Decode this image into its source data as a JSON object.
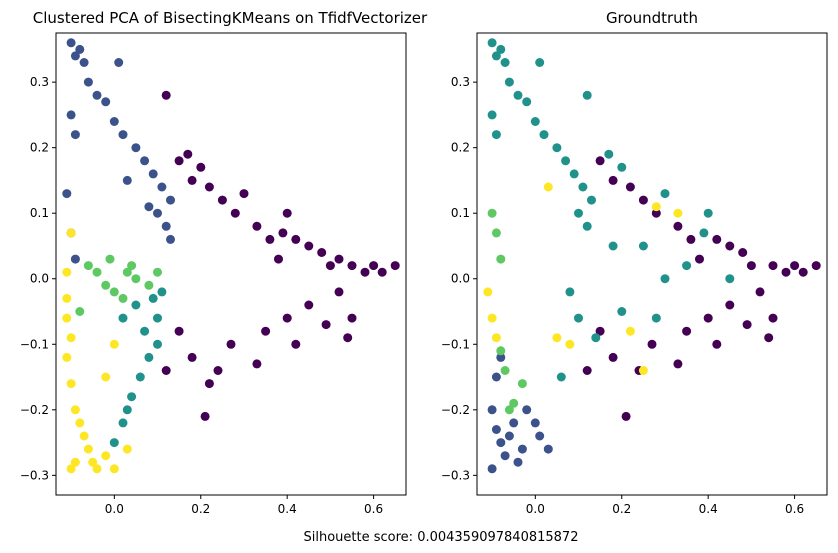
{
  "figure": {
    "footer_text": "Silhouette score: 0.004359097840815872"
  },
  "colors": {
    "purple": "#440154",
    "blue": "#3b528b",
    "teal": "#21918c",
    "green": "#5ec962",
    "yellow": "#fde725"
  },
  "chart_data": [
    {
      "type": "scatter",
      "title": "Clustered PCA of BisectingKMeans on TfidfVectorizer",
      "xlabel": "",
      "ylabel": "",
      "xlim": [
        -0.135,
        0.675
      ],
      "ylim": [
        -0.33,
        0.375
      ],
      "xticks": [
        0.0,
        0.2,
        0.4,
        0.6
      ],
      "xtick_labels": [
        "0.0",
        "0.2",
        "0.4",
        "0.6"
      ],
      "yticks": [
        -0.3,
        -0.2,
        -0.1,
        0.0,
        0.1,
        0.2,
        0.3
      ],
      "ytick_labels": [
        "−0.3",
        "−0.2",
        "−0.1",
        "0.0",
        "0.1",
        "0.2",
        "0.3"
      ],
      "grid": false,
      "legend": "none",
      "point_groups": [
        {
          "color": "purple",
          "points": [
            [
              0.12,
              0.28
            ],
            [
              0.15,
              0.18
            ],
            [
              0.17,
              0.19
            ],
            [
              0.18,
              0.15
            ],
            [
              0.2,
              0.17
            ],
            [
              0.22,
              0.14
            ],
            [
              0.25,
              0.12
            ],
            [
              0.3,
              0.13
            ],
            [
              0.28,
              0.1
            ],
            [
              0.33,
              0.08
            ],
            [
              0.36,
              0.06
            ],
            [
              0.39,
              0.07
            ],
            [
              0.4,
              0.1
            ],
            [
              0.42,
              0.06
            ],
            [
              0.45,
              0.05
            ],
            [
              0.48,
              0.04
            ],
            [
              0.5,
              0.02
            ],
            [
              0.52,
              0.03
            ],
            [
              0.55,
              0.02
            ],
            [
              0.58,
              0.01
            ],
            [
              0.6,
              0.02
            ],
            [
              0.62,
              0.01
            ],
            [
              0.65,
              0.02
            ],
            [
              0.52,
              -0.02
            ],
            [
              0.55,
              -0.06
            ],
            [
              0.54,
              -0.09
            ],
            [
              0.49,
              -0.07
            ],
            [
              0.45,
              -0.04
            ],
            [
              0.4,
              -0.06
            ],
            [
              0.35,
              -0.08
            ],
            [
              0.33,
              -0.13
            ],
            [
              0.24,
              -0.14
            ],
            [
              0.22,
              -0.16
            ],
            [
              0.21,
              -0.21
            ],
            [
              0.15,
              -0.08
            ],
            [
              0.12,
              -0.14
            ],
            [
              0.18,
              -0.12
            ],
            [
              0.27,
              -0.1
            ],
            [
              0.42,
              -0.1
            ],
            [
              0.38,
              0.03
            ]
          ]
        },
        {
          "color": "blue",
          "points": [
            [
              -0.1,
              0.36
            ],
            [
              -0.09,
              0.34
            ],
            [
              -0.08,
              0.35
            ],
            [
              -0.07,
              0.33
            ],
            [
              0.01,
              0.33
            ],
            [
              -0.06,
              0.3
            ],
            [
              -0.04,
              0.28
            ],
            [
              -0.02,
              0.27
            ],
            [
              -0.1,
              0.25
            ],
            [
              -0.09,
              0.22
            ],
            [
              0.0,
              0.24
            ],
            [
              0.02,
              0.22
            ],
            [
              0.05,
              0.2
            ],
            [
              0.07,
              0.18
            ],
            [
              0.09,
              0.16
            ],
            [
              0.11,
              0.14
            ],
            [
              0.13,
              0.12
            ],
            [
              0.1,
              0.1
            ],
            [
              0.12,
              0.08
            ],
            [
              0.13,
              0.06
            ],
            [
              -0.11,
              0.13
            ],
            [
              -0.1,
              0.07
            ],
            [
              -0.09,
              0.03
            ],
            [
              0.03,
              0.15
            ],
            [
              0.08,
              0.11
            ]
          ]
        },
        {
          "color": "teal",
          "points": [
            [
              0.11,
              -0.02
            ],
            [
              0.1,
              -0.06
            ],
            [
              0.1,
              -0.1
            ],
            [
              0.08,
              -0.12
            ],
            [
              0.06,
              -0.15
            ],
            [
              0.04,
              -0.18
            ],
            [
              0.03,
              -0.2
            ],
            [
              0.02,
              -0.22
            ],
            [
              0.0,
              -0.25
            ],
            [
              0.09,
              -0.03
            ],
            [
              0.05,
              -0.04
            ],
            [
              0.02,
              -0.06
            ],
            [
              0.07,
              -0.08
            ]
          ]
        },
        {
          "color": "green",
          "points": [
            [
              -0.06,
              0.02
            ],
            [
              -0.04,
              0.01
            ],
            [
              -0.02,
              -0.01
            ],
            [
              0.0,
              -0.02
            ],
            [
              0.03,
              0.01
            ],
            [
              0.05,
              0.0
            ],
            [
              0.08,
              -0.01
            ],
            [
              0.1,
              0.01
            ],
            [
              -0.01,
              0.03
            ],
            [
              0.02,
              -0.03
            ],
            [
              -0.08,
              -0.05
            ],
            [
              0.04,
              0.02
            ]
          ]
        },
        {
          "color": "yellow",
          "points": [
            [
              -0.11,
              -0.06
            ],
            [
              -0.1,
              -0.09
            ],
            [
              -0.11,
              -0.12
            ],
            [
              -0.1,
              -0.16
            ],
            [
              -0.09,
              -0.2
            ],
            [
              -0.08,
              -0.22
            ],
            [
              -0.07,
              -0.24
            ],
            [
              -0.06,
              -0.26
            ],
            [
              -0.05,
              -0.28
            ],
            [
              -0.04,
              -0.29
            ],
            [
              -0.1,
              -0.29
            ],
            [
              -0.09,
              -0.28
            ],
            [
              -0.02,
              -0.27
            ],
            [
              0.0,
              -0.29
            ],
            [
              0.03,
              -0.26
            ],
            [
              -0.1,
              0.07
            ],
            [
              -0.11,
              0.01
            ],
            [
              -0.11,
              -0.03
            ],
            [
              0.0,
              -0.1
            ],
            [
              -0.02,
              -0.15
            ]
          ]
        }
      ]
    },
    {
      "type": "scatter",
      "title": "Groundtruth",
      "xlabel": "",
      "ylabel": "",
      "xlim": [
        -0.135,
        0.675
      ],
      "ylim": [
        -0.33,
        0.375
      ],
      "xticks": [
        0.0,
        0.2,
        0.4,
        0.6
      ],
      "xtick_labels": [
        "0.0",
        "0.2",
        "0.4",
        "0.6"
      ],
      "yticks": [
        -0.3,
        -0.2,
        -0.1,
        0.0,
        0.1,
        0.2,
        0.3
      ],
      "ytick_labels": [
        "−0.3",
        "−0.2",
        "−0.1",
        "0.0",
        "0.1",
        "0.2",
        "0.3"
      ],
      "grid": false,
      "legend": "none",
      "point_groups": [
        {
          "color": "purple",
          "points": [
            [
              0.15,
              0.18
            ],
            [
              0.18,
              0.15
            ],
            [
              0.22,
              0.14
            ],
            [
              0.25,
              0.12
            ],
            [
              0.28,
              0.1
            ],
            [
              0.33,
              0.08
            ],
            [
              0.36,
              0.06
            ],
            [
              0.42,
              0.06
            ],
            [
              0.45,
              0.05
            ],
            [
              0.48,
              0.04
            ],
            [
              0.5,
              0.02
            ],
            [
              0.55,
              0.02
            ],
            [
              0.58,
              0.01
            ],
            [
              0.6,
              0.02
            ],
            [
              0.62,
              0.01
            ],
            [
              0.65,
              0.02
            ],
            [
              0.52,
              -0.02
            ],
            [
              0.55,
              -0.06
            ],
            [
              0.54,
              -0.09
            ],
            [
              0.49,
              -0.07
            ],
            [
              0.45,
              -0.04
            ],
            [
              0.4,
              -0.06
            ],
            [
              0.35,
              -0.08
            ],
            [
              0.33,
              -0.13
            ],
            [
              0.24,
              -0.14
            ],
            [
              0.21,
              -0.21
            ],
            [
              0.15,
              -0.08
            ],
            [
              0.12,
              -0.14
            ],
            [
              0.18,
              -0.12
            ],
            [
              0.27,
              -0.1
            ],
            [
              0.42,
              -0.1
            ],
            [
              0.38,
              0.03
            ]
          ]
        },
        {
          "color": "blue",
          "points": [
            [
              -0.1,
              -0.2
            ],
            [
              -0.09,
              -0.23
            ],
            [
              -0.08,
              -0.25
            ],
            [
              -0.07,
              -0.27
            ],
            [
              -0.06,
              -0.24
            ],
            [
              -0.05,
              -0.22
            ],
            [
              -0.04,
              -0.28
            ],
            [
              -0.03,
              -0.26
            ],
            [
              -0.02,
              -0.2
            ],
            [
              0.0,
              -0.22
            ],
            [
              0.01,
              -0.24
            ],
            [
              0.03,
              -0.26
            ],
            [
              -0.1,
              -0.29
            ],
            [
              -0.09,
              -0.15
            ],
            [
              -0.08,
              -0.12
            ]
          ]
        },
        {
          "color": "teal",
          "points": [
            [
              -0.1,
              0.36
            ],
            [
              -0.09,
              0.34
            ],
            [
              -0.08,
              0.35
            ],
            [
              -0.07,
              0.33
            ],
            [
              0.01,
              0.33
            ],
            [
              -0.06,
              0.3
            ],
            [
              -0.04,
              0.28
            ],
            [
              0.12,
              0.28
            ],
            [
              0.17,
              0.19
            ],
            [
              0.2,
              0.17
            ],
            [
              0.3,
              0.13
            ],
            [
              0.39,
              0.07
            ],
            [
              0.4,
              0.1
            ],
            [
              0.05,
              0.2
            ],
            [
              0.07,
              0.18
            ],
            [
              0.09,
              0.16
            ],
            [
              0.11,
              0.14
            ],
            [
              0.13,
              0.12
            ],
            [
              0.1,
              0.1
            ],
            [
              0.12,
              0.08
            ],
            [
              -0.02,
              0.27
            ],
            [
              -0.1,
              0.25
            ],
            [
              -0.09,
              0.22
            ],
            [
              0.0,
              0.24
            ],
            [
              0.02,
              0.22
            ],
            [
              0.08,
              -0.02
            ],
            [
              0.1,
              -0.06
            ],
            [
              0.06,
              -0.15
            ],
            [
              0.14,
              -0.09
            ],
            [
              0.2,
              -0.05
            ],
            [
              0.3,
              0.0
            ],
            [
              0.25,
              0.05
            ],
            [
              0.35,
              0.02
            ],
            [
              0.45,
              0.0
            ],
            [
              0.28,
              -0.06
            ],
            [
              0.18,
              0.05
            ]
          ]
        },
        {
          "color": "green",
          "points": [
            [
              -0.09,
              0.07
            ],
            [
              -0.08,
              0.03
            ],
            [
              -0.08,
              -0.11
            ],
            [
              -0.07,
              -0.14
            ],
            [
              -0.06,
              -0.2
            ],
            [
              -0.05,
              -0.19
            ],
            [
              -0.1,
              0.1
            ],
            [
              -0.03,
              -0.16
            ]
          ]
        },
        {
          "color": "yellow",
          "points": [
            [
              -0.1,
              -0.06
            ],
            [
              -0.11,
              -0.02
            ],
            [
              -0.09,
              -0.09
            ],
            [
              0.22,
              -0.08
            ],
            [
              0.25,
              -0.14
            ],
            [
              0.33,
              0.1
            ],
            [
              0.28,
              0.11
            ],
            [
              0.03,
              0.14
            ],
            [
              0.05,
              -0.09
            ],
            [
              0.08,
              -0.1
            ]
          ]
        }
      ]
    }
  ]
}
